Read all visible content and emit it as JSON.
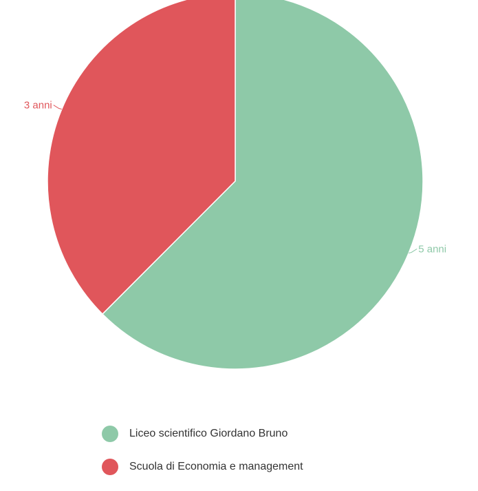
{
  "chart_data": {
    "type": "pie",
    "title": "",
    "slices": [
      {
        "label": "Liceo scientifico Giordano Bruno",
        "value": 5,
        "data_label": "5 anni",
        "color": "#8ec9a8"
      },
      {
        "label": "Scuola di Economia e management",
        "value": 3,
        "data_label": "3 anni",
        "color": "#e0565b"
      }
    ],
    "legend_position": "bottom"
  }
}
